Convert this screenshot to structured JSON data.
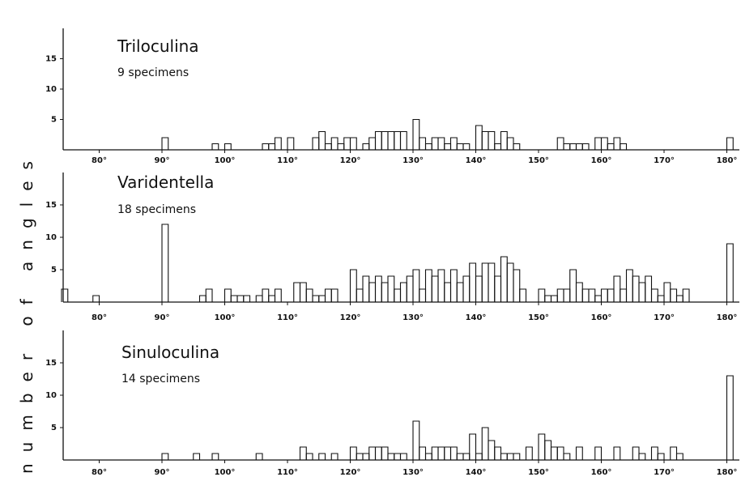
{
  "figure": {
    "ylabel": "number of angles"
  },
  "chart_data": [
    {
      "type": "bar",
      "title": "Triloculina",
      "subtitle": "9 specimens",
      "ylabel": "",
      "xlim": [
        74,
        182
      ],
      "ylim": [
        0,
        20
      ],
      "yticks": [
        5,
        10,
        15
      ],
      "xticks": [
        80,
        90,
        100,
        110,
        120,
        130,
        140,
        150,
        160,
        170,
        180
      ],
      "xtick_labels": [
        "80°",
        "90°",
        "100°",
        "110°",
        "120°",
        "130°",
        "140°",
        "150°",
        "160°",
        "170°",
        "180°"
      ],
      "bin_width": 1,
      "bins": [
        {
          "x": 90,
          "v": 2
        },
        {
          "x": 98,
          "v": 1
        },
        {
          "x": 100,
          "v": 1
        },
        {
          "x": 106,
          "v": 1
        },
        {
          "x": 107,
          "v": 1
        },
        {
          "x": 108,
          "v": 2
        },
        {
          "x": 110,
          "v": 2
        },
        {
          "x": 114,
          "v": 2
        },
        {
          "x": 115,
          "v": 3
        },
        {
          "x": 116,
          "v": 1
        },
        {
          "x": 117,
          "v": 2
        },
        {
          "x": 118,
          "v": 1
        },
        {
          "x": 119,
          "v": 2
        },
        {
          "x": 120,
          "v": 2
        },
        {
          "x": 122,
          "v": 1
        },
        {
          "x": 123,
          "v": 2
        },
        {
          "x": 124,
          "v": 3
        },
        {
          "x": 125,
          "v": 3
        },
        {
          "x": 126,
          "v": 3
        },
        {
          "x": 127,
          "v": 3
        },
        {
          "x": 128,
          "v": 3
        },
        {
          "x": 130,
          "v": 5
        },
        {
          "x": 131,
          "v": 2
        },
        {
          "x": 132,
          "v": 1
        },
        {
          "x": 133,
          "v": 2
        },
        {
          "x": 134,
          "v": 2
        },
        {
          "x": 135,
          "v": 1
        },
        {
          "x": 136,
          "v": 2
        },
        {
          "x": 137,
          "v": 1
        },
        {
          "x": 138,
          "v": 1
        },
        {
          "x": 140,
          "v": 4
        },
        {
          "x": 141,
          "v": 3
        },
        {
          "x": 142,
          "v": 3
        },
        {
          "x": 143,
          "v": 1
        },
        {
          "x": 144,
          "v": 3
        },
        {
          "x": 145,
          "v": 2
        },
        {
          "x": 146,
          "v": 1
        },
        {
          "x": 153,
          "v": 2
        },
        {
          "x": 154,
          "v": 1
        },
        {
          "x": 155,
          "v": 1
        },
        {
          "x": 156,
          "v": 1
        },
        {
          "x": 157,
          "v": 1
        },
        {
          "x": 159,
          "v": 2
        },
        {
          "x": 160,
          "v": 2
        },
        {
          "x": 161,
          "v": 1
        },
        {
          "x": 162,
          "v": 2
        },
        {
          "x": 163,
          "v": 1
        },
        {
          "x": 180,
          "v": 2
        }
      ]
    },
    {
      "type": "bar",
      "title": "Varidentella",
      "subtitle": "18 specimens",
      "ylabel": "",
      "xlim": [
        74,
        182
      ],
      "ylim": [
        0,
        20
      ],
      "yticks": [
        5,
        10,
        15
      ],
      "xticks": [
        80,
        90,
        100,
        110,
        120,
        130,
        140,
        150,
        160,
        170,
        180
      ],
      "xtick_labels": [
        "80°",
        "90°",
        "100°",
        "110°",
        "120°",
        "130°",
        "140°",
        "150°",
        "160°",
        "170°",
        "180°"
      ],
      "bin_width": 1,
      "bins": [
        {
          "x": 74,
          "v": 2
        },
        {
          "x": 79,
          "v": 1
        },
        {
          "x": 90,
          "v": 12
        },
        {
          "x": 96,
          "v": 1
        },
        {
          "x": 97,
          "v": 2
        },
        {
          "x": 100,
          "v": 2
        },
        {
          "x": 101,
          "v": 1
        },
        {
          "x": 102,
          "v": 1
        },
        {
          "x": 103,
          "v": 1
        },
        {
          "x": 105,
          "v": 1
        },
        {
          "x": 106,
          "v": 2
        },
        {
          "x": 107,
          "v": 1
        },
        {
          "x": 108,
          "v": 2
        },
        {
          "x": 111,
          "v": 3
        },
        {
          "x": 112,
          "v": 3
        },
        {
          "x": 113,
          "v": 2
        },
        {
          "x": 114,
          "v": 1
        },
        {
          "x": 115,
          "v": 1
        },
        {
          "x": 116,
          "v": 2
        },
        {
          "x": 117,
          "v": 2
        },
        {
          "x": 120,
          "v": 5
        },
        {
          "x": 121,
          "v": 2
        },
        {
          "x": 122,
          "v": 4
        },
        {
          "x": 123,
          "v": 3
        },
        {
          "x": 124,
          "v": 4
        },
        {
          "x": 125,
          "v": 3
        },
        {
          "x": 126,
          "v": 4
        },
        {
          "x": 127,
          "v": 2
        },
        {
          "x": 128,
          "v": 3
        },
        {
          "x": 129,
          "v": 4
        },
        {
          "x": 130,
          "v": 5
        },
        {
          "x": 131,
          "v": 2
        },
        {
          "x": 132,
          "v": 5
        },
        {
          "x": 133,
          "v": 4
        },
        {
          "x": 134,
          "v": 5
        },
        {
          "x": 135,
          "v": 3
        },
        {
          "x": 136,
          "v": 5
        },
        {
          "x": 137,
          "v": 3
        },
        {
          "x": 138,
          "v": 4
        },
        {
          "x": 139,
          "v": 6
        },
        {
          "x": 140,
          "v": 4
        },
        {
          "x": 141,
          "v": 6
        },
        {
          "x": 142,
          "v": 6
        },
        {
          "x": 143,
          "v": 4
        },
        {
          "x": 144,
          "v": 7
        },
        {
          "x": 145,
          "v": 6
        },
        {
          "x": 146,
          "v": 5
        },
        {
          "x": 147,
          "v": 2
        },
        {
          "x": 150,
          "v": 2
        },
        {
          "x": 151,
          "v": 1
        },
        {
          "x": 152,
          "v": 1
        },
        {
          "x": 153,
          "v": 2
        },
        {
          "x": 154,
          "v": 2
        },
        {
          "x": 155,
          "v": 5
        },
        {
          "x": 156,
          "v": 3
        },
        {
          "x": 157,
          "v": 2
        },
        {
          "x": 158,
          "v": 2
        },
        {
          "x": 159,
          "v": 1
        },
        {
          "x": 160,
          "v": 2
        },
        {
          "x": 161,
          "v": 2
        },
        {
          "x": 162,
          "v": 4
        },
        {
          "x": 163,
          "v": 2
        },
        {
          "x": 164,
          "v": 5
        },
        {
          "x": 165,
          "v": 4
        },
        {
          "x": 166,
          "v": 3
        },
        {
          "x": 167,
          "v": 4
        },
        {
          "x": 168,
          "v": 2
        },
        {
          "x": 169,
          "v": 1
        },
        {
          "x": 170,
          "v": 3
        },
        {
          "x": 171,
          "v": 2
        },
        {
          "x": 172,
          "v": 1
        },
        {
          "x": 173,
          "v": 2
        },
        {
          "x": 180,
          "v": 9
        }
      ]
    },
    {
      "type": "bar",
      "title": "Sinuloculina",
      "subtitle": "14 specimens",
      "ylabel": "",
      "xlim": [
        74,
        182
      ],
      "ylim": [
        0,
        20
      ],
      "yticks": [
        5,
        10,
        15
      ],
      "xticks": [
        80,
        90,
        100,
        110,
        120,
        130,
        140,
        150,
        160,
        170,
        180
      ],
      "xtick_labels": [
        "80°",
        "90°",
        "100°",
        "110°",
        "120°",
        "130°",
        "140°",
        "150°",
        "160°",
        "170°",
        "180°"
      ],
      "bin_width": 1,
      "bins": [
        {
          "x": 90,
          "v": 1
        },
        {
          "x": 95,
          "v": 1
        },
        {
          "x": 98,
          "v": 1
        },
        {
          "x": 105,
          "v": 1
        },
        {
          "x": 112,
          "v": 2
        },
        {
          "x": 113,
          "v": 1
        },
        {
          "x": 115,
          "v": 1
        },
        {
          "x": 117,
          "v": 1
        },
        {
          "x": 120,
          "v": 2
        },
        {
          "x": 121,
          "v": 1
        },
        {
          "x": 122,
          "v": 1
        },
        {
          "x": 123,
          "v": 2
        },
        {
          "x": 124,
          "v": 2
        },
        {
          "x": 125,
          "v": 2
        },
        {
          "x": 126,
          "v": 1
        },
        {
          "x": 127,
          "v": 1
        },
        {
          "x": 128,
          "v": 1
        },
        {
          "x": 130,
          "v": 6
        },
        {
          "x": 131,
          "v": 2
        },
        {
          "x": 132,
          "v": 1
        },
        {
          "x": 133,
          "v": 2
        },
        {
          "x": 134,
          "v": 2
        },
        {
          "x": 135,
          "v": 2
        },
        {
          "x": 136,
          "v": 2
        },
        {
          "x": 137,
          "v": 1
        },
        {
          "x": 138,
          "v": 1
        },
        {
          "x": 139,
          "v": 4
        },
        {
          "x": 140,
          "v": 1
        },
        {
          "x": 141,
          "v": 5
        },
        {
          "x": 142,
          "v": 3
        },
        {
          "x": 143,
          "v": 2
        },
        {
          "x": 144,
          "v": 1
        },
        {
          "x": 145,
          "v": 1
        },
        {
          "x": 146,
          "v": 1
        },
        {
          "x": 148,
          "v": 2
        },
        {
          "x": 150,
          "v": 4
        },
        {
          "x": 151,
          "v": 3
        },
        {
          "x": 152,
          "v": 2
        },
        {
          "x": 153,
          "v": 2
        },
        {
          "x": 154,
          "v": 1
        },
        {
          "x": 156,
          "v": 2
        },
        {
          "x": 159,
          "v": 2
        },
        {
          "x": 162,
          "v": 2
        },
        {
          "x": 165,
          "v": 2
        },
        {
          "x": 166,
          "v": 1
        },
        {
          "x": 168,
          "v": 2
        },
        {
          "x": 169,
          "v": 1
        },
        {
          "x": 171,
          "v": 2
        },
        {
          "x": 172,
          "v": 1
        },
        {
          "x": 180,
          "v": 13
        }
      ]
    }
  ]
}
